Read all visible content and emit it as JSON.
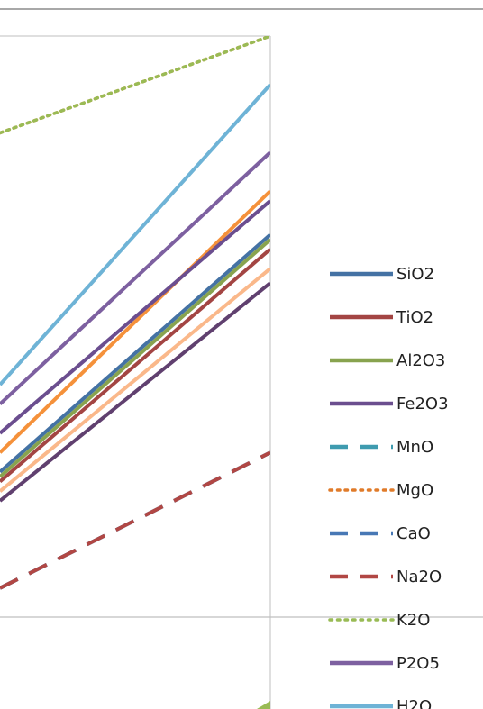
{
  "chart_data": {
    "type": "line",
    "title": "",
    "xlabel": "",
    "ylabel": "",
    "grid": true,
    "legend_position": "right",
    "series": [
      {
        "name": "SiO2",
        "color": "#4472A4",
        "dash": "solid",
        "x": [
          0,
          10
        ],
        "y": [
          5.0,
          9.9
        ]
      },
      {
        "name": "TiO2",
        "color": "#A34543",
        "dash": "solid",
        "x": [
          0,
          10
        ],
        "y": [
          4.8,
          9.6
        ]
      },
      {
        "name": "Al2O3",
        "color": "#88A34F",
        "dash": "solid",
        "x": [
          0,
          10
        ],
        "y": [
          4.9,
          9.8
        ]
      },
      {
        "name": "Fe2O3",
        "color": "#6B4E8F",
        "dash": "solid",
        "x": [
          0,
          10
        ],
        "y": [
          5.8,
          10.6
        ]
      },
      {
        "name": "MnO",
        "color": "#3E9BAF",
        "dash": "dash",
        "x": [
          0,
          10
        ],
        "y": [
          2.6,
          5.4
        ]
      },
      {
        "name": "MgO",
        "color": "#E07B2A",
        "dash": "dot",
        "x": [
          0,
          10
        ],
        "y": [
          12.0,
          14.0
        ]
      },
      {
        "name": "CaO",
        "color": "#4878B5",
        "dash": "dash",
        "x": [
          0,
          10
        ],
        "y": [
          2.6,
          5.4
        ]
      },
      {
        "name": "Na2O",
        "color": "#B14744",
        "dash": "dash",
        "x": [
          0,
          10
        ],
        "y": [
          2.6,
          5.4
        ]
      },
      {
        "name": "K2O",
        "color": "#99BB55",
        "dash": "dot",
        "x": [
          0,
          10
        ],
        "y": [
          12.0,
          14.0
        ]
      },
      {
        "name": "P2O5",
        "color": "#7D60A0",
        "dash": "solid",
        "x": [
          0,
          10
        ],
        "y": [
          6.4,
          11.6
        ]
      },
      {
        "name": "H2O",
        "color": "#6EB3D6",
        "dash": "solid",
        "x": [
          0,
          10
        ],
        "y": [
          6.8,
          13.0
        ]
      }
    ],
    "extra_lines": [
      {
        "color": "#F5913A",
        "dash": "solid",
        "x": [
          0,
          10
        ],
        "y": [
          5.4,
          10.8
        ]
      },
      {
        "color": "#FAB88A",
        "dash": "solid",
        "x": [
          0,
          10
        ],
        "y": [
          4.6,
          9.2
        ]
      },
      {
        "color": "#60406F",
        "dash": "solid",
        "x": [
          0,
          10
        ],
        "y": [
          4.4,
          8.9
        ]
      }
    ],
    "visible_legend_count": 11
  }
}
